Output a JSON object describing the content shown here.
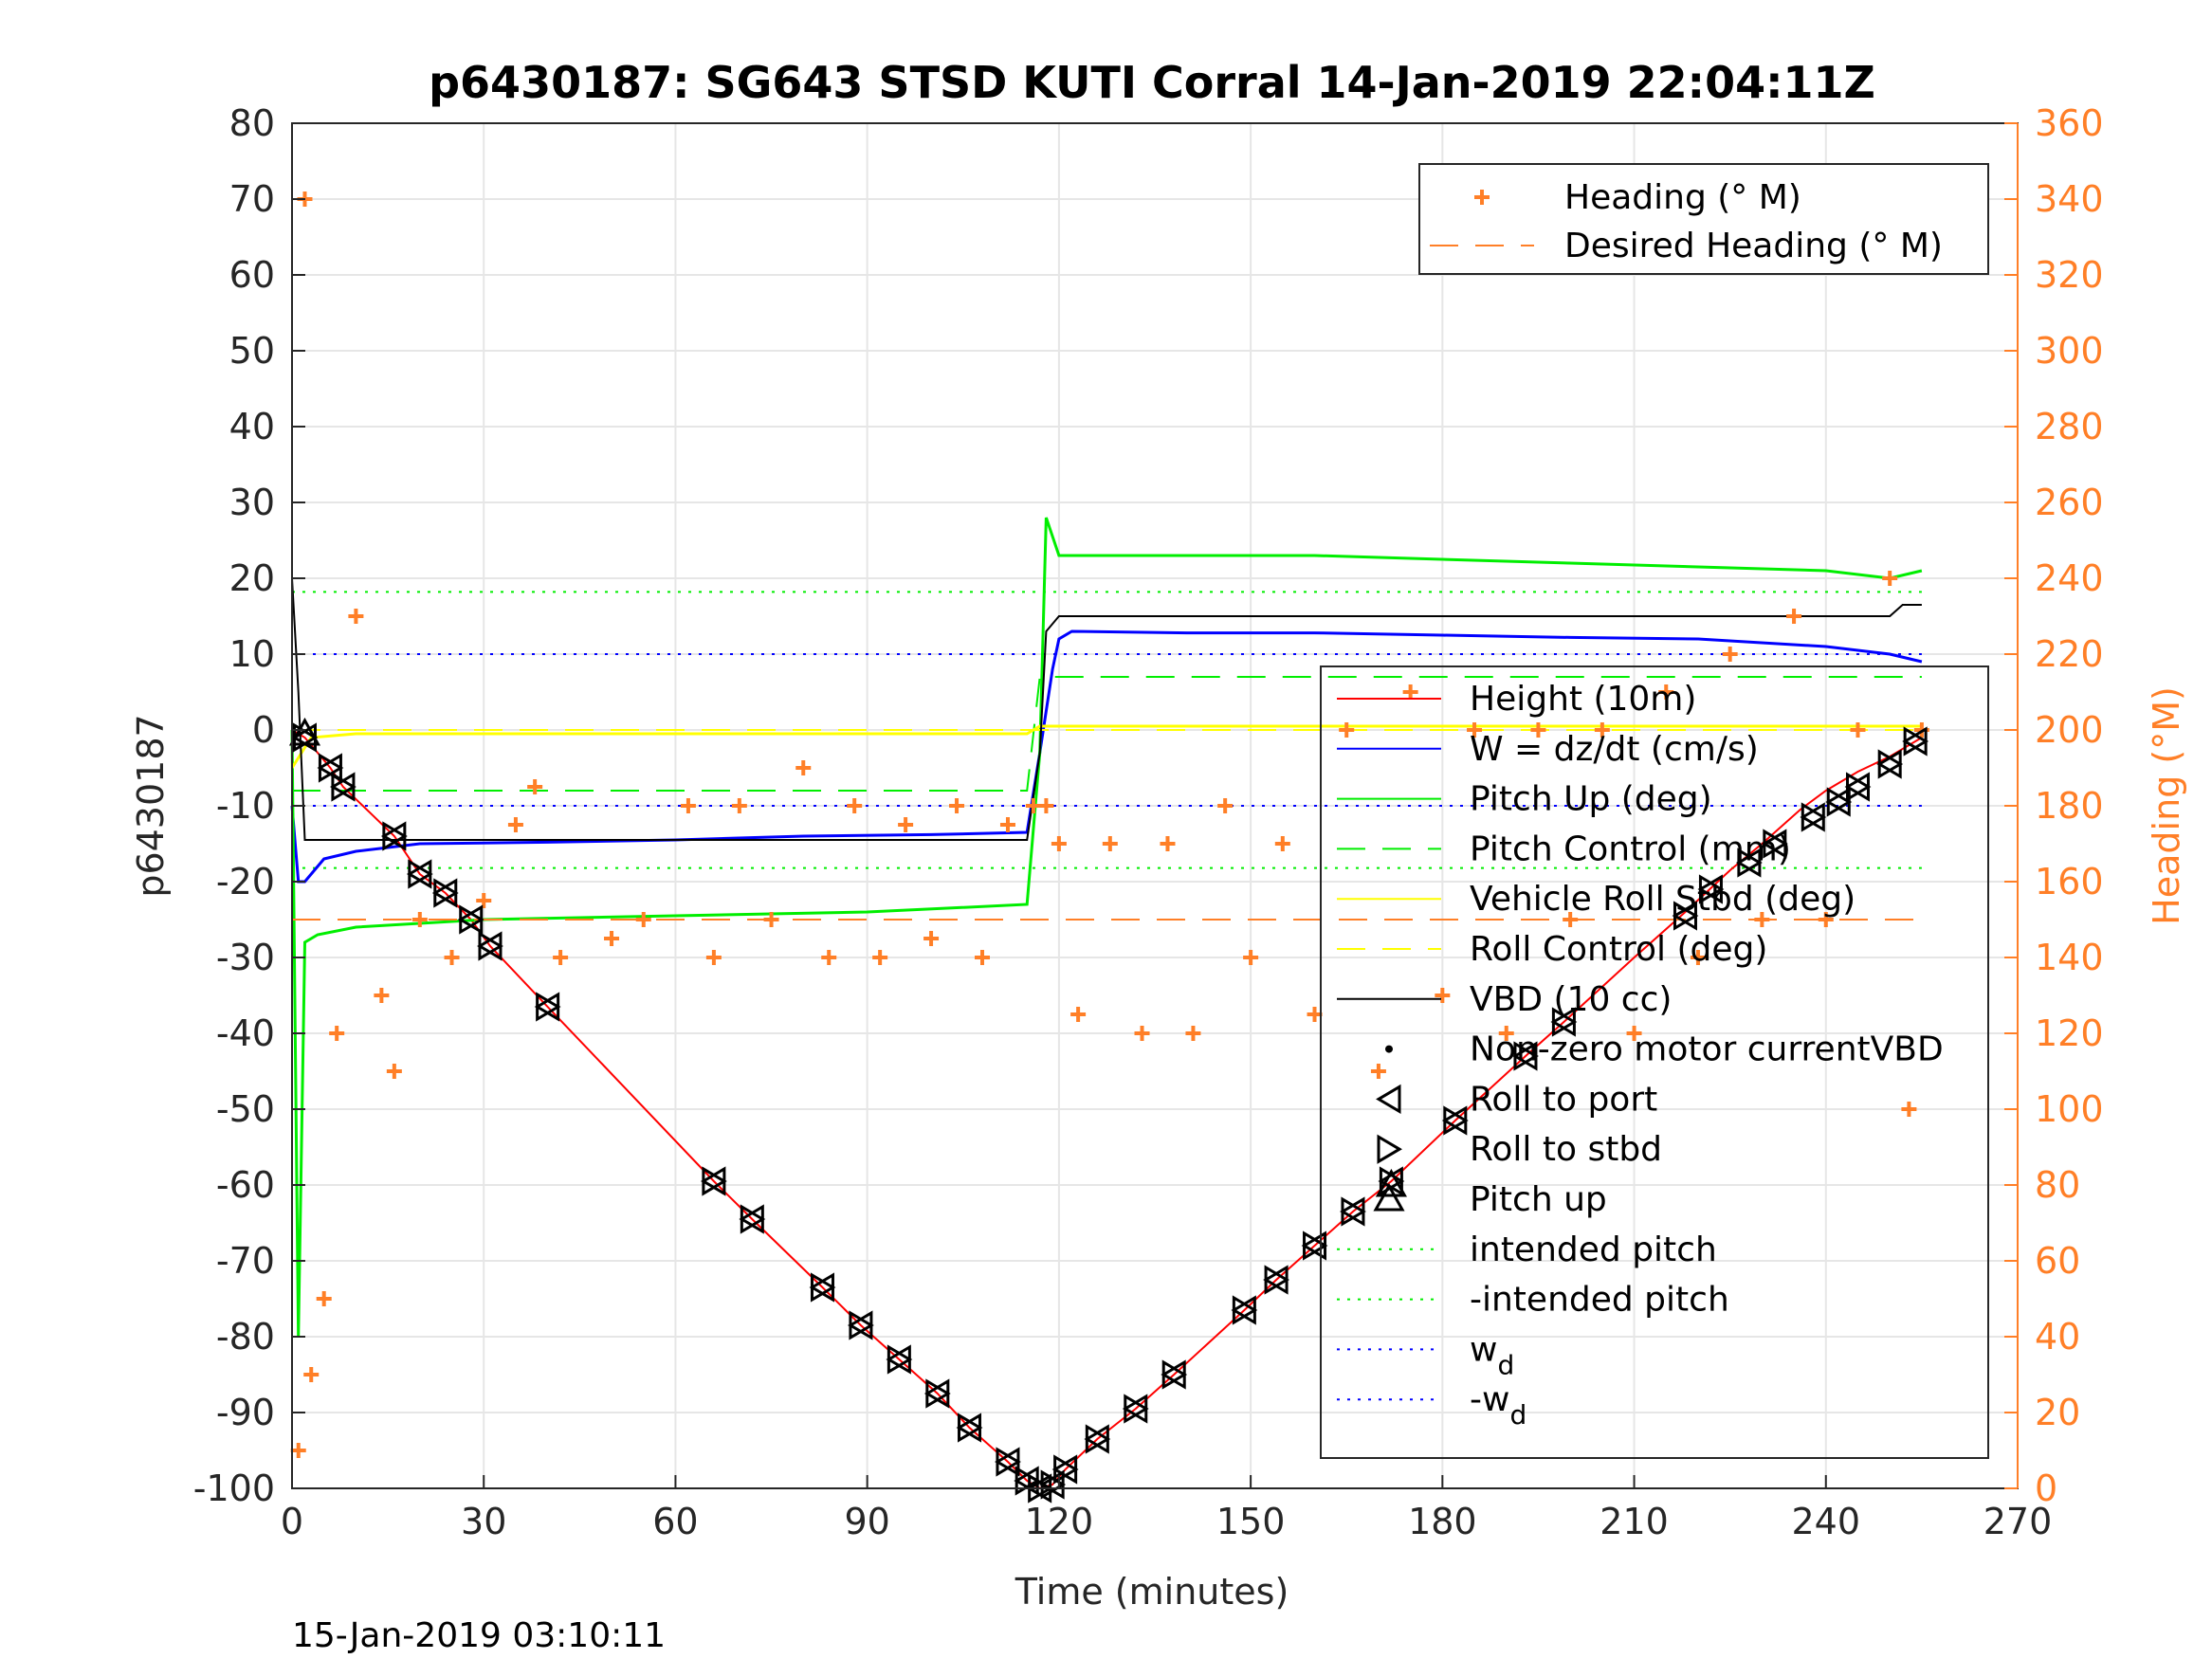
{
  "chart_data": {
    "type": "line",
    "title": "p6430187: SG643 STSD KUTI Corral 14-Jan-2019 22:04:11Z",
    "xlabel": "Time (minutes)",
    "ylabel": "p6430187",
    "ylabel_right": "Heading (°M)",
    "xlim": [
      0,
      270
    ],
    "ylim": [
      -100,
      80
    ],
    "ylim_right": [
      0,
      360
    ],
    "x_ticks": [
      "0",
      "30",
      "60",
      "90",
      "120",
      "150",
      "180",
      "210",
      "240",
      "270"
    ],
    "y_ticks": [
      "80",
      "70",
      "60",
      "50",
      "40",
      "30",
      "20",
      "10",
      "0",
      "-10",
      "-20",
      "-30",
      "-40",
      "-50",
      "-60",
      "-70",
      "-80",
      "-90",
      "-100"
    ],
    "y_ticks_right": [
      "360",
      "340",
      "320",
      "300",
      "280",
      "260",
      "240",
      "220",
      "200",
      "180",
      "160",
      "140",
      "120",
      "100",
      "80",
      "60",
      "40",
      "20",
      "0"
    ],
    "grid": true,
    "footer": "15-Jan-2019 03:10:11",
    "colors": {
      "height": "#ff0000",
      "w": "#0000ff",
      "pitch": "#00ee00",
      "roll": "#ffff00",
      "vbd": "#000000",
      "heading": "#ff7f27"
    },
    "legend_top": {
      "placement": "top-right",
      "entries": [
        "Heading (° M)",
        "Desired Heading (° M)"
      ]
    },
    "legend_main": {
      "placement": "lower-right",
      "entries": [
        "Height (10m)",
        "W = dz/dt (cm/s)",
        "Pitch Up (deg)",
        "Pitch Control (mm)",
        "Vehicle Roll Stbd (deg)",
        "Roll Control (deg)",
        "VBD (10 cc)",
        "Non-zero motor currentVBD",
        "Roll to port",
        "Roll to stbd",
        "Pitch up",
        "intended pitch",
        "-intended pitch",
        "w",
        "-w"
      ],
      "subscript": "d"
    },
    "series": [
      {
        "name": "Height (10m)",
        "x": [
          0,
          2,
          6,
          8,
          16,
          20,
          24,
          28,
          31,
          40,
          66,
          72,
          83,
          89,
          95,
          101,
          106,
          112,
          115,
          117,
          119,
          121,
          126,
          132,
          138,
          149,
          154,
          160,
          166,
          172,
          182,
          193,
          199,
          210,
          218,
          225,
          230,
          236,
          240,
          245,
          250,
          255
        ],
        "y": [
          0,
          -1,
          -5,
          -7.5,
          -14,
          -19,
          -21.5,
          -25,
          -28.5,
          -36.5,
          -59.5,
          -64.5,
          -73.5,
          -78.5,
          -83,
          -87.5,
          -92,
          -96.5,
          -99,
          -100,
          -99.5,
          -97.5,
          -93.5,
          -89.5,
          -85,
          -76.5,
          -72.5,
          -68,
          -63.5,
          -59.5,
          -51.5,
          -43,
          -38.5,
          -30,
          -24,
          -18.5,
          -15,
          -10.5,
          -8,
          -5.5,
          -3.5,
          -1
        ]
      },
      {
        "name": "W = dz/dt (cm/s)",
        "x": [
          0,
          1,
          2,
          5,
          10,
          20,
          40,
          60,
          80,
          100,
          115,
          117,
          119,
          120,
          122,
          140,
          160,
          180,
          200,
          220,
          240,
          250,
          255
        ],
        "y": [
          -10,
          -20,
          -20,
          -17,
          -16,
          -15,
          -14.8,
          -14.5,
          -14,
          -13.8,
          -13.5,
          -3,
          8,
          12,
          13,
          12.8,
          12.8,
          12.5,
          12.2,
          12,
          11,
          10,
          9
        ]
      },
      {
        "name": "Pitch Up (deg)",
        "x": [
          0,
          1,
          2,
          4,
          10,
          30,
          60,
          90,
          115,
          117,
          118,
          120,
          130,
          160,
          200,
          240,
          250,
          255
        ],
        "y": [
          0,
          -80,
          -28,
          -27,
          -26,
          -25,
          -24.5,
          -24,
          -23,
          -3,
          28,
          23,
          23,
          23,
          22,
          21,
          20,
          21
        ]
      },
      {
        "name": "Pitch Control (mm)",
        "x": [
          0,
          115,
          117,
          255
        ],
        "y": [
          -8,
          -8,
          7,
          7
        ]
      },
      {
        "name": "Vehicle Roll Stbd (deg)",
        "x": [
          0,
          3,
          10,
          60,
          115,
          117,
          200,
          255
        ],
        "y": [
          -5,
          -1,
          -0.5,
          -0.5,
          -0.5,
          0.5,
          0.5,
          0.5
        ]
      },
      {
        "name": "Roll Control (deg)",
        "x": [
          0,
          255
        ],
        "y": [
          0,
          0
        ]
      },
      {
        "name": "VBD (10 cc)",
        "x": [
          0,
          1,
          2,
          115,
          117,
          118,
          120,
          250,
          252,
          255
        ],
        "y": [
          20,
          5,
          -14.5,
          -14.5,
          -3,
          13,
          15,
          15,
          16.5,
          16.5
        ]
      },
      {
        "name": "intended pitch",
        "x": [
          0,
          255
        ],
        "y": [
          18.2,
          18.2
        ]
      },
      {
        "name": "-intended pitch",
        "x": [
          0,
          255
        ],
        "y": [
          -18.2,
          -18.2
        ]
      },
      {
        "name": "w",
        "x": [
          0,
          255
        ],
        "y": [
          10,
          10
        ]
      },
      {
        "name": "-w",
        "x": [
          0,
          255
        ],
        "y": [
          -10,
          -10
        ]
      },
      {
        "name": "Heading (° M)",
        "x": [
          1,
          2,
          3,
          5,
          7,
          10,
          14,
          16,
          20,
          25,
          30,
          35,
          38,
          42,
          50,
          55,
          62,
          66,
          70,
          75,
          80,
          84,
          88,
          92,
          96,
          100,
          104,
          108,
          112,
          116,
          118,
          120,
          123,
          128,
          133,
          137,
          141,
          146,
          150,
          155,
          160,
          165,
          170,
          175,
          180,
          185,
          190,
          195,
          200,
          205,
          210,
          215,
          220,
          225,
          230,
          235,
          240,
          245,
          250,
          253,
          255
        ],
        "y": [
          10,
          340,
          30,
          50,
          120,
          230,
          130,
          110,
          150,
          140,
          155,
          175,
          185,
          140,
          145,
          150,
          180,
          140,
          180,
          150,
          190,
          140,
          180,
          140,
          175,
          145,
          180,
          140,
          175,
          180,
          180,
          170,
          125,
          170,
          120,
          170,
          120,
          180,
          140,
          170,
          125,
          200,
          110,
          210,
          130,
          200,
          120,
          200,
          150,
          200,
          120,
          210,
          140,
          220,
          150,
          230,
          150,
          200,
          240,
          100,
          200
        ]
      },
      {
        "name": "Desired Heading (° M)",
        "x": [
          0,
          255
        ],
        "y": [
          150,
          150
        ]
      }
    ],
    "markers": {
      "roll_to_port": {
        "x": [
          2,
          6,
          8,
          16,
          20,
          24,
          28,
          31,
          40,
          66,
          72,
          83,
          89,
          95,
          101,
          106,
          112,
          115,
          117,
          119,
          121,
          126,
          132,
          138,
          149,
          154,
          160,
          166,
          172,
          182,
          193,
          199,
          218,
          222,
          228,
          232,
          238,
          242,
          245,
          250,
          254
        ],
        "y": [
          -1,
          -5,
          -7.5,
          -14,
          -19,
          -21.5,
          -25,
          -28.5,
          -36.5,
          -59.5,
          -64.5,
          -73.5,
          -78.5,
          -83,
          -87.5,
          -92,
          -96.5,
          -99,
          -100,
          -99.5,
          -97.5,
          -93.5,
          -89.5,
          -85,
          -76.5,
          -72.5,
          -68,
          -63.5,
          -59.5,
          -51.5,
          -43,
          -38.5,
          -24.5,
          -21,
          -17.5,
          -15,
          -11.5,
          -9.5,
          -7.5,
          -4.5,
          -1.5
        ]
      },
      "pitch_up": {
        "x": [
          2,
          172
        ],
        "y": [
          -0.5,
          -60
        ]
      }
    }
  }
}
